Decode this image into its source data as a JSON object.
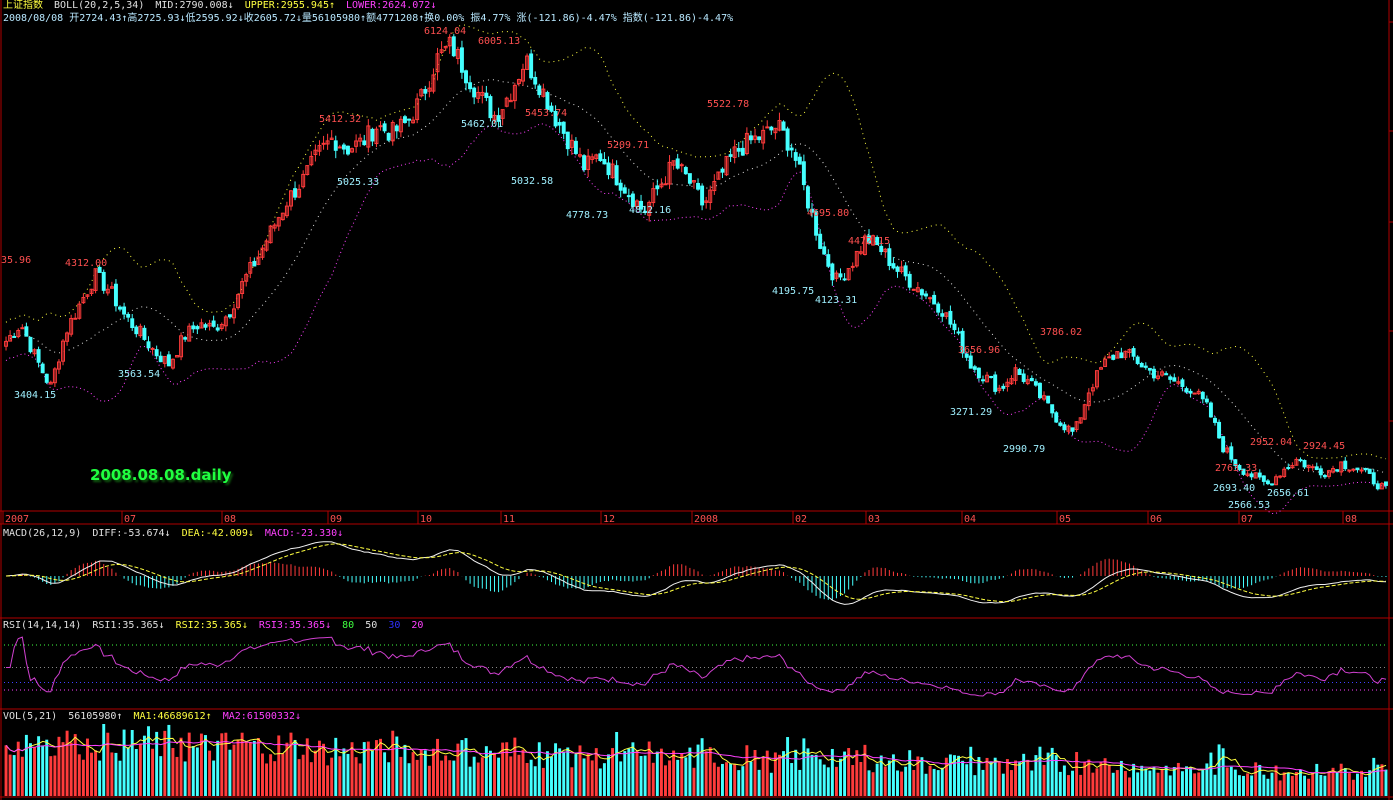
{
  "header": {
    "index_name": "上证指数",
    "boll_label": "BOLL(20,2,5,34)",
    "mid": "MID:2790.008↓",
    "upper": "UPPER:2955.945↑",
    "lower": "LOWER:2624.072↓",
    "line2": "2008/08/08 开2724.43↑高2725.93↓低2595.92↓收2605.72↓量56105980↑额4771208↑换0.00% 振4.77% 涨(-121.86)-4.47% 指数(-121.86)-4.47%"
  },
  "stamp": "2008.08.08.daily",
  "months": [
    "2007",
    "07",
    "08",
    "09",
    "10",
    "11",
    "12",
    "2008",
    "02",
    "03",
    "04",
    "05",
    "06",
    "07",
    "08"
  ],
  "macd_header": {
    "label": "MACD(26,12,9)",
    "diff": "DIFF:-53.674↓",
    "dea": "DEA:-42.009↓",
    "macd": "MACD:-23.330↓"
  },
  "rsi_header": {
    "label": "RSI(14,14,14)",
    "rsi1": "RSI1:35.365↓",
    "rsi2": "RSI2:35.365↓",
    "rsi3": "RSI3:35.365↓",
    "l80": "80",
    "l50": "50",
    "l30": "30",
    "l20": "20"
  },
  "vol_header": {
    "label": "VOL(5,21)",
    "vol": "56105980↑",
    "ma1": "MA1:46689612↑",
    "ma2": "MA2:61500332↓"
  },
  "chart_data": {
    "type": "candlestick",
    "title": "上证指数",
    "x_axis_months": [
      "2007",
      "07",
      "08",
      "09",
      "10",
      "11",
      "12",
      "2008",
      "02",
      "03",
      "04",
      "05",
      "06",
      "07",
      "08"
    ],
    "annotations": {
      "highs": [
        {
          "label": "35.96"
        },
        {
          "label": "4312.00"
        },
        {
          "label": "5412.32"
        },
        {
          "label": "6124.04"
        },
        {
          "label": "6005.13"
        },
        {
          "label": "5453.74"
        },
        {
          "label": "5209.71"
        },
        {
          "label": "5522.78"
        },
        {
          "label": "4695.80"
        },
        {
          "label": "4472.15"
        },
        {
          "label": "3656.96"
        },
        {
          "label": "3786.02"
        },
        {
          "label": "2952.04"
        },
        {
          "label": "2763.33"
        },
        {
          "label": "2924.45"
        }
      ],
      "lows": [
        {
          "label": "3404.15"
        },
        {
          "label": "3563.54"
        },
        {
          "label": "5025.33"
        },
        {
          "label": "5462.01"
        },
        {
          "label": "5032.58"
        },
        {
          "label": "4778.73"
        },
        {
          "label": "4812.16"
        },
        {
          "label": "4195.75"
        },
        {
          "label": "4123.31"
        },
        {
          "label": "3271.29"
        },
        {
          "label": "2990.79"
        },
        {
          "label": "2693.40"
        },
        {
          "label": "2566.53"
        },
        {
          "label": "2656.61"
        }
      ]
    },
    "close_path": [
      3780,
      3920,
      3650,
      3420,
      3850,
      4080,
      4300,
      4180,
      3980,
      3850,
      3700,
      3600,
      3820,
      3920,
      3880,
      4000,
      4250,
      4450,
      4680,
      4900,
      5050,
      5250,
      5380,
      5300,
      5350,
      5480,
      5420,
      5500,
      5700,
      6000,
      6120,
      5900,
      5700,
      5550,
      5750,
      6000,
      5800,
      5550,
      5350,
      5150,
      5250,
      5100,
      4950,
      4800,
      5000,
      5180,
      5050,
      4850,
      5050,
      5250,
      5350,
      5400,
      5480,
      5300,
      4900,
      4500,
      4250,
      4400,
      4600,
      4500,
      4350,
      4250,
      4150,
      4050,
      3850,
      3600,
      3500,
      3400,
      3550,
      3450,
      3300,
      3150,
      3050,
      3400,
      3600,
      3700,
      3650,
      3550,
      3500,
      3450,
      3400,
      3250,
      2950,
      2800,
      2720,
      2650,
      2760,
      2850,
      2780,
      2750,
      2820,
      2780,
      2700,
      2605
    ],
    "boll": {
      "mid": 2790.008,
      "upper": 2955.945,
      "lower": 2624.072
    },
    "macd": {
      "diff": -53.674,
      "dea": -42.009,
      "macd": -23.33
    },
    "rsi": {
      "rsi1": 35.365,
      "rsi2": 35.365,
      "rsi3": 35.365,
      "levels": [
        80,
        50,
        30,
        20
      ]
    },
    "volume": {
      "vol": 56105980,
      "ma1": 46689612,
      "ma2": 61500332
    }
  },
  "colors": {
    "up": "#ff3b3b",
    "down": "#44ffff",
    "upper": "#ffff40",
    "lower": "#ff40ff",
    "grid": "#b00000"
  }
}
